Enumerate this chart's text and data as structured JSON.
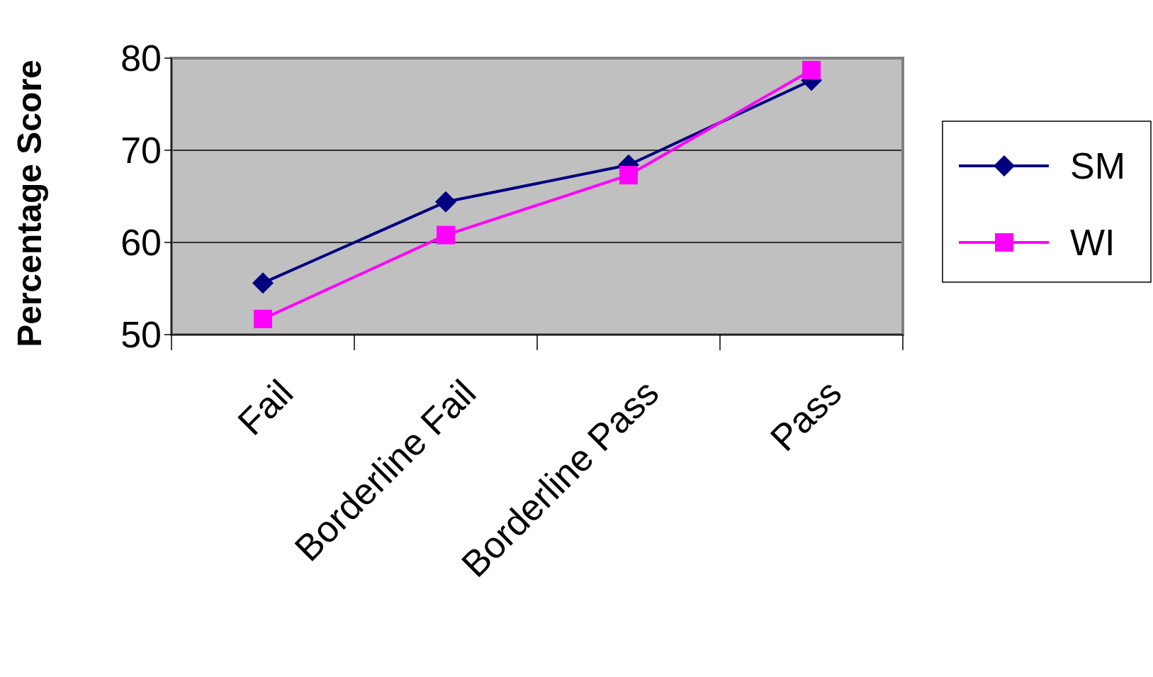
{
  "chart_data": {
    "type": "line",
    "ylabel": "Percentage Score",
    "categories": [
      "Fail",
      "Borderline Fail",
      "Borderline Pass",
      "Pass"
    ],
    "series": [
      {
        "name": "SM",
        "color": "#000080",
        "marker": "diamond",
        "values": [
          55.6,
          64.4,
          68.4,
          77.6
        ]
      },
      {
        "name": "WI",
        "color": "#ff00ff",
        "marker": "square",
        "values": [
          51.7,
          60.8,
          67.3,
          78.7
        ]
      }
    ],
    "ylim": [
      50,
      80
    ],
    "yticks": [
      50,
      60,
      70,
      80
    ],
    "grid": "y",
    "legend": "right"
  }
}
